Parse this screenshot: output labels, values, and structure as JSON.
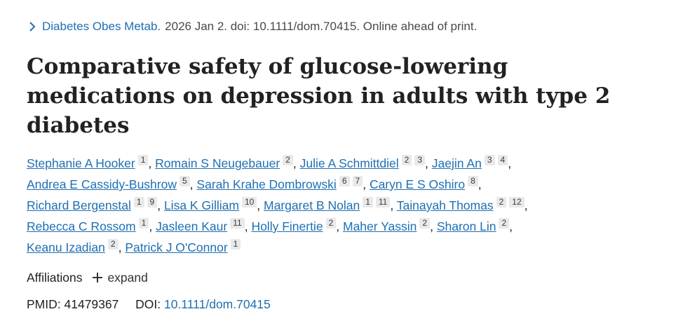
{
  "journal": {
    "name": "Diabetes Obes Metab.",
    "citation": "2026 Jan 2. doi: 10.1111/dom.70415. Online ahead of print."
  },
  "title": "Comparative safety of glucose-lowering medications on depression in adults with type 2 diabetes",
  "authors": [
    {
      "name": "Stephanie A Hooker",
      "affs": [
        "1"
      ]
    },
    {
      "name": "Romain S Neugebauer",
      "affs": [
        "2"
      ]
    },
    {
      "name": "Julie A Schmittdiel",
      "affs": [
        "2",
        "3"
      ]
    },
    {
      "name": "Jaejin An",
      "affs": [
        "3",
        "4"
      ]
    },
    {
      "name": "Andrea E Cassidy-Bushrow",
      "affs": [
        "5"
      ]
    },
    {
      "name": "Sarah Krahe Dombrowski",
      "affs": [
        "6",
        "7"
      ]
    },
    {
      "name": "Caryn E S Oshiro",
      "affs": [
        "8"
      ]
    },
    {
      "name": "Richard Bergenstal",
      "affs": [
        "1",
        "9"
      ]
    },
    {
      "name": "Lisa K Gilliam",
      "affs": [
        "10"
      ]
    },
    {
      "name": "Margaret B Nolan",
      "affs": [
        "1",
        "11"
      ]
    },
    {
      "name": "Tainayah Thomas",
      "affs": [
        "2",
        "12"
      ]
    },
    {
      "name": "Rebecca C Rossom",
      "affs": [
        "1"
      ]
    },
    {
      "name": "Jasleen Kaur",
      "affs": [
        "11"
      ]
    },
    {
      "name": "Holly Finertie",
      "affs": [
        "2"
      ]
    },
    {
      "name": "Maher Yassin",
      "affs": [
        "2"
      ]
    },
    {
      "name": "Sharon Lin",
      "affs": [
        "2"
      ]
    },
    {
      "name": "Keanu Izadian",
      "affs": [
        "2"
      ]
    },
    {
      "name": "Patrick J O'Connor",
      "affs": [
        "1"
      ]
    }
  ],
  "affiliations": {
    "label": "Affiliations",
    "expand_label": "expand"
  },
  "ids": {
    "pmid_label": "PMID:",
    "pmid": "41479367",
    "doi_label": "DOI:",
    "doi": "10.1111/dom.70415"
  },
  "colors": {
    "link": "#1f6fb2",
    "text": "#212121",
    "badge_bg": "#e9e9e9"
  },
  "icons": {
    "journal_chevron": "chevron-right-icon",
    "expand": "plus-icon"
  }
}
